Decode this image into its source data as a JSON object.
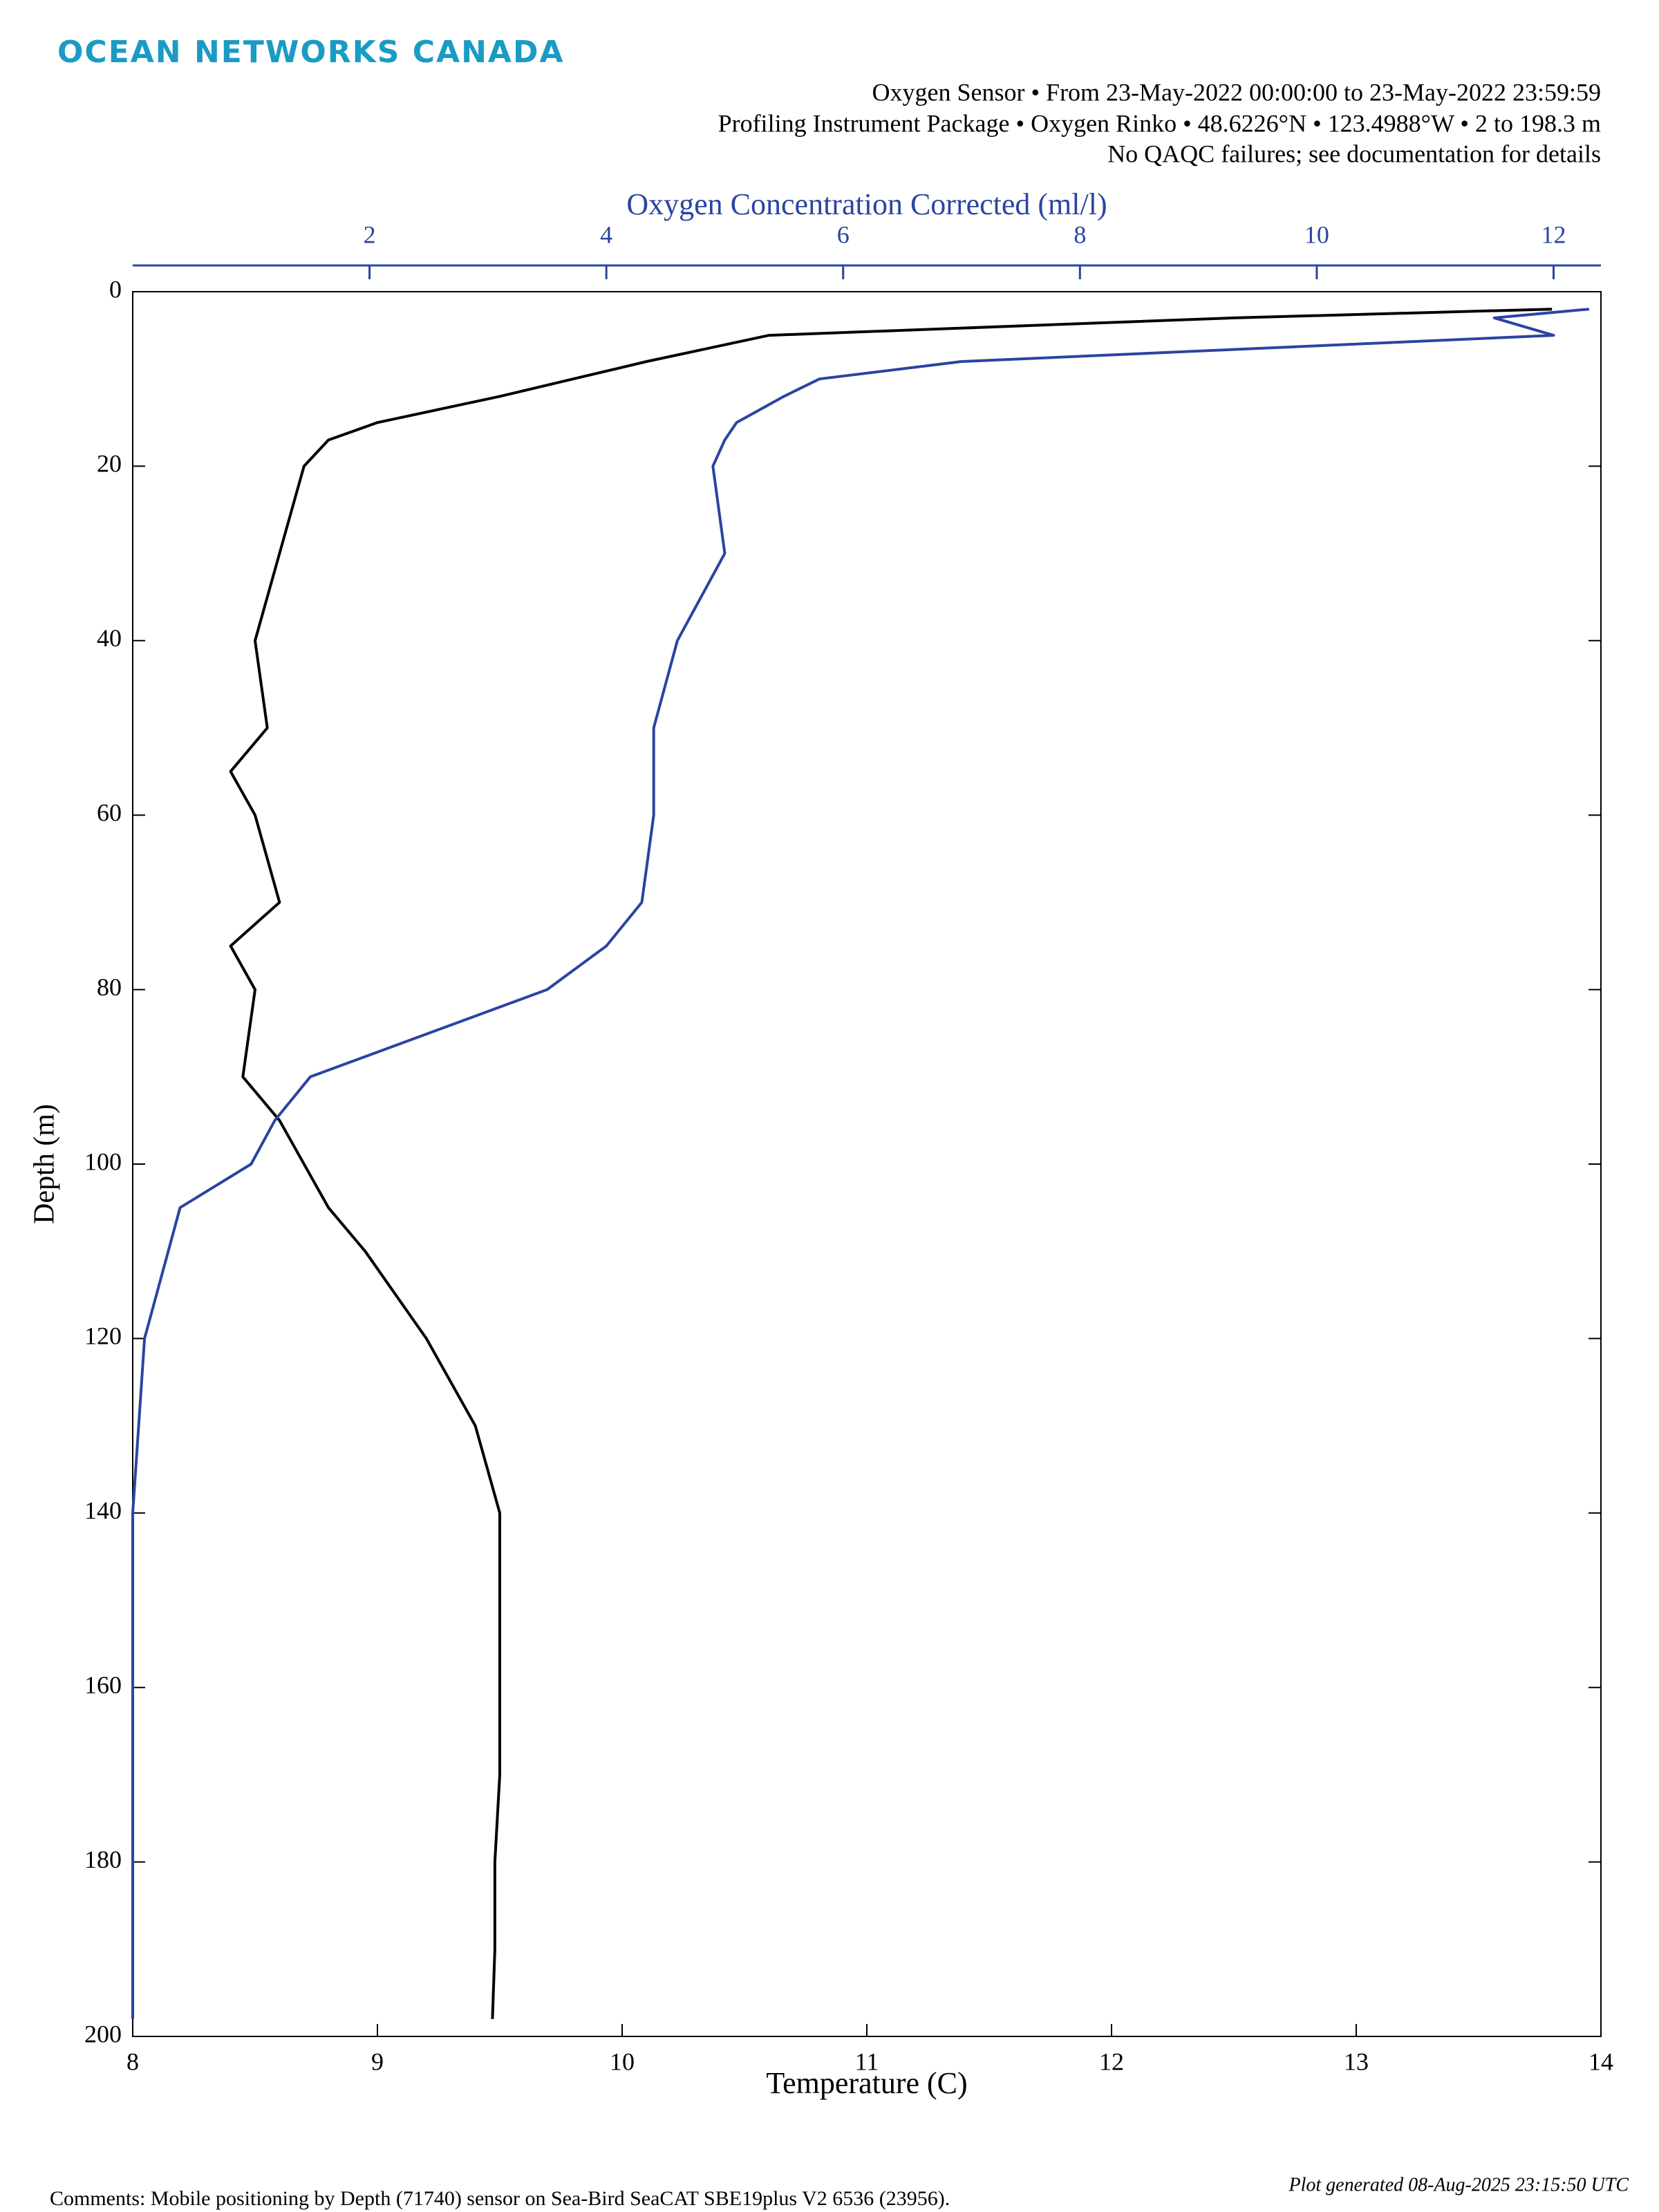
{
  "header": {
    "logo": "OCEAN NETWORKS CANADA",
    "lines": [
      "Oxygen Sensor • From 23-May-2022 00:00:00 to 23-May-2022 23:59:59",
      "Profiling Instrument Package • Oxygen Rinko • 48.6226°N • 123.4988°W • 2 to 198.3 m",
      "No QAQC failures; see documentation for details"
    ]
  },
  "chart_data": {
    "type": "profile",
    "xlabel": "Temperature (C)",
    "x2label": "Oxygen Concentration Corrected (ml/l)",
    "ylabel": "Depth (m)",
    "xlim": [
      8,
      14
    ],
    "xticks": [
      8,
      9,
      10,
      11,
      12,
      13,
      14
    ],
    "x2lim": [
      0,
      12.4
    ],
    "x2ticks": [
      2,
      4,
      6,
      8,
      10,
      12
    ],
    "ylim": [
      0,
      200
    ],
    "yticks": [
      0,
      20,
      40,
      60,
      80,
      100,
      120,
      140,
      160,
      180,
      200
    ],
    "y_reversed": true,
    "y": [
      2,
      3,
      5,
      8,
      10,
      12,
      15,
      17,
      20,
      30,
      40,
      50,
      55,
      60,
      70,
      75,
      80,
      90,
      95,
      100,
      105,
      110,
      120,
      130,
      140,
      150,
      160,
      170,
      180,
      190,
      198
    ],
    "series": [
      {
        "color": "#000000",
        "axis": "x",
        "values": [
          13.8,
          12.5,
          10.6,
          10.1,
          9.8,
          9.5,
          9.0,
          8.8,
          8.7,
          8.6,
          8.5,
          8.55,
          8.4,
          8.5,
          8.6,
          8.4,
          8.5,
          8.45,
          8.6,
          8.7,
          8.8,
          8.95,
          9.2,
          9.4,
          9.5,
          9.5,
          9.5,
          9.5,
          9.48,
          9.48,
          9.47
        ]
      },
      {
        "color": "#2a44a0",
        "axis": "x2",
        "values": [
          12.3,
          11.5,
          12.0,
          7.0,
          5.8,
          5.5,
          5.1,
          5.0,
          4.9,
          5.0,
          4.6,
          4.4,
          4.4,
          4.4,
          4.3,
          4.0,
          3.5,
          1.5,
          1.2,
          1.0,
          0.4,
          0.3,
          0.1,
          0.05,
          0.0,
          0.0,
          0.0,
          0.0,
          0.0,
          0.0,
          0.0
        ]
      }
    ]
  },
  "footer": {
    "comments": "Comments: Mobile positioning by Depth (71740) sensor on Sea-Bird SeaCAT SBE19plus V2 6536 (23956).",
    "generated": "Plot generated 08-Aug-2025 23:15:50 UTC"
  }
}
